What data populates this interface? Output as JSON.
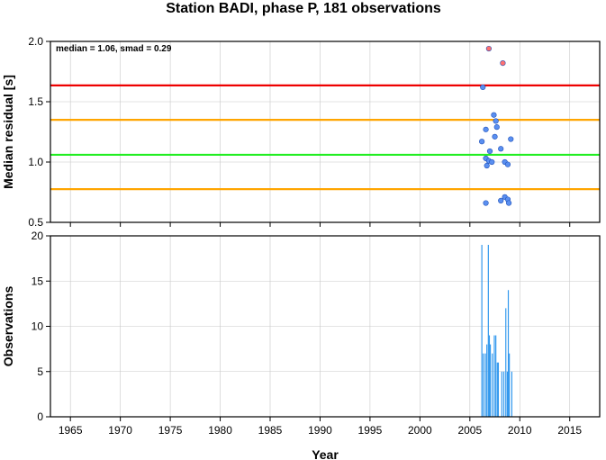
{
  "title": "Station BADI, phase P, 181 observations",
  "chart_data": [
    {
      "type": "scatter",
      "ylabel": "Median residual [s]",
      "xlim": [
        1963,
        2018
      ],
      "ylim": [
        0.5,
        2.0
      ],
      "yticks": [
        0.5,
        1.0,
        1.5,
        2.0
      ],
      "ytick_labels": [
        "0.5",
        "1.0",
        "1.5",
        "2.0"
      ],
      "grid": true,
      "annotation": "median = 1.06, smad = 0.29",
      "reference_lines": [
        {
          "y": 1.635,
          "color": "#ee0000"
        },
        {
          "y": 1.35,
          "color": "#ffa500"
        },
        {
          "y": 1.06,
          "color": "#22ee22"
        },
        {
          "y": 0.775,
          "color": "#ffa500"
        }
      ],
      "series": [
        {
          "color": "#5a8ff0",
          "points": [
            [
              2006.3,
              1.62
            ],
            [
              2006.2,
              1.17
            ],
            [
              2006.6,
              1.27
            ],
            [
              2006.6,
              1.03
            ],
            [
              2006.7,
              0.97
            ],
            [
              2007.0,
              1.09
            ],
            [
              2006.9,
              1.01
            ],
            [
              2007.2,
              1.0
            ],
            [
              2007.4,
              1.39
            ],
            [
              2007.6,
              1.34
            ],
            [
              2007.7,
              1.29
            ],
            [
              2007.5,
              1.21
            ],
            [
              2008.1,
              1.11
            ],
            [
              2008.5,
              1.0
            ],
            [
              2008.8,
              0.98
            ],
            [
              2009.1,
              1.19
            ],
            [
              2006.6,
              0.66
            ],
            [
              2008.1,
              0.68
            ],
            [
              2008.5,
              0.71
            ],
            [
              2008.8,
              0.69
            ],
            [
              2008.9,
              0.66
            ]
          ]
        },
        {
          "color": "#ff7070",
          "points": [
            [
              2006.9,
              1.94
            ],
            [
              2008.3,
              1.82
            ]
          ]
        }
      ]
    },
    {
      "type": "bar",
      "ylabel": "Observations",
      "xlabel": "Year",
      "xlim": [
        1963,
        2018
      ],
      "ylim": [
        0,
        20
      ],
      "xticks": [
        1965,
        1970,
        1975,
        1980,
        1985,
        1990,
        1995,
        2000,
        2005,
        2010,
        2015
      ],
      "xtick_labels": [
        "1965",
        "1970",
        "1975",
        "1980",
        "1985",
        "1990",
        "1995",
        "2000",
        "2005",
        "2010",
        "2015"
      ],
      "yticks": [
        0,
        5,
        10,
        15,
        20
      ],
      "ytick_labels": [
        "0",
        "5",
        "10",
        "15",
        "20"
      ],
      "grid": true,
      "bar_color": "#3399ee",
      "bars": [
        [
          2006.2,
          19
        ],
        [
          2006.35,
          7
        ],
        [
          2006.55,
          7
        ],
        [
          2006.7,
          8
        ],
        [
          2006.85,
          19
        ],
        [
          2006.95,
          9
        ],
        [
          2007.05,
          8
        ],
        [
          2007.25,
          7
        ],
        [
          2007.45,
          9
        ],
        [
          2007.6,
          9
        ],
        [
          2007.75,
          6
        ],
        [
          2007.85,
          6
        ],
        [
          2008.2,
          5
        ],
        [
          2008.4,
          5
        ],
        [
          2008.6,
          12
        ],
        [
          2008.75,
          5
        ],
        [
          2008.85,
          14
        ],
        [
          2008.95,
          7
        ],
        [
          2009.2,
          5
        ]
      ]
    }
  ]
}
